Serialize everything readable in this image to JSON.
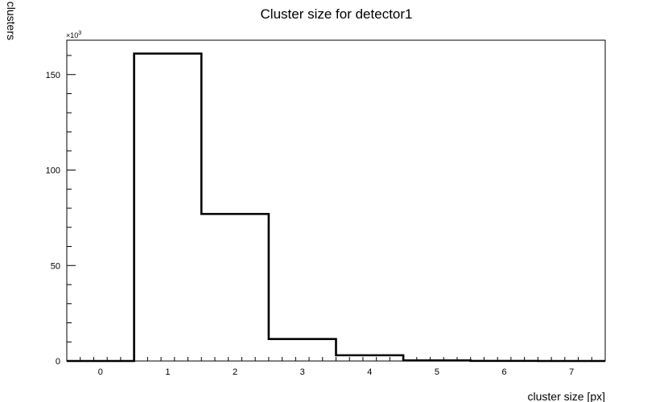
{
  "chart_data": {
    "type": "bar",
    "title": "Cluster size for detector1",
    "xlabel": "cluster size [px]",
    "ylabel": "clusters",
    "y_multiplier": "×10",
    "y_multiplier_exponent": "3",
    "xlim": [
      -0.5,
      7.5
    ],
    "ylim": [
      0,
      168000
    ],
    "x_ticks": [
      0,
      1,
      2,
      3,
      4,
      5,
      6,
      7
    ],
    "y_ticks": [
      0,
      50,
      100,
      150
    ],
    "bin_edges": [
      -0.5,
      0.5,
      1.5,
      2.5,
      3.5,
      4.5,
      5.5,
      6.5,
      7.5
    ],
    "categories": [
      "0",
      "1",
      "2",
      "3",
      "4",
      "5",
      "6",
      "7"
    ],
    "values": [
      0,
      161000,
      77000,
      11500,
      3000,
      300,
      50,
      0
    ],
    "grid": false,
    "style": "step-histogram",
    "line_color": "#000000"
  }
}
